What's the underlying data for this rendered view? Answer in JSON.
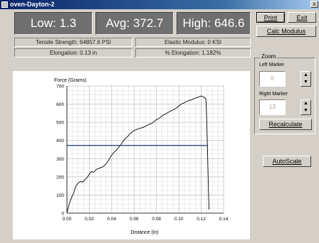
{
  "window": {
    "title": "oven-Dayton-2",
    "close_glyph": "x"
  },
  "stats": {
    "low_label": "Low:",
    "low_value": "1.3",
    "avg_label": "Avg:",
    "avg_value": "372.7",
    "high_label": "High:",
    "high_value": "646.6"
  },
  "info": {
    "tensile_strength": "Tensile Strength: 64857.6 PSI",
    "elastic_modulus": "Elastic Modulus: 0 KSI",
    "elongation": "Elongation: 0.13 in",
    "pct_elongation": "% Elongation: 1.182%"
  },
  "buttons": {
    "print": "Print",
    "exit": "Exit",
    "calc_modulus": "Calc Modulus",
    "recalculate": "Recalculate",
    "autoscale": "AutoScale"
  },
  "zoom": {
    "group_label": "Zoom",
    "left_marker_label": "Left Marker",
    "left_marker_value": "0",
    "right_marker_label": "Right Marker",
    "right_marker_value": "13",
    "spin_up": "▲",
    "spin_down": "▼"
  },
  "colors": {
    "stat_box_bg": "#6f6f6f",
    "title_bar": "#0a246a",
    "data_line": "#000000",
    "avg_line": "#2a4e7a"
  },
  "chart_data": {
    "type": "line",
    "ylabel": "Force (Grams)",
    "xlabel": "Distance (in)",
    "xlim": [
      0,
      0.14
    ],
    "ylim": [
      0,
      700
    ],
    "xticks": [
      "0.00",
      "0.02",
      "0.04",
      "0.06",
      "0.08",
      "0.10",
      "0.12",
      "0.14"
    ],
    "yticks": [
      "0",
      "100",
      "200",
      "300",
      "400",
      "500",
      "600",
      "700"
    ],
    "grid": true,
    "series": [
      {
        "x": [
          0,
          0.002,
          0.004,
          0.006,
          0.008,
          0.01,
          0.012,
          0.014,
          0.016,
          0.018,
          0.02,
          0.022,
          0.024,
          0.026,
          0.028,
          0.03,
          0.032,
          0.034,
          0.036,
          0.038,
          0.04,
          0.042,
          0.044,
          0.046,
          0.048,
          0.05,
          0.052,
          0.054,
          0.056,
          0.058,
          0.06,
          0.062,
          0.064,
          0.066,
          0.068,
          0.07,
          0.072,
          0.074,
          0.076,
          0.078,
          0.08,
          0.082,
          0.084,
          0.086,
          0.088,
          0.09,
          0.092,
          0.094,
          0.096,
          0.098,
          0.1,
          0.102,
          0.104,
          0.106,
          0.108,
          0.11,
          0.112,
          0.114,
          0.116,
          0.118,
          0.12,
          0.122,
          0.124,
          0.1245,
          0.125,
          0.1255,
          0.126,
          0.1265,
          0.127
        ],
        "y": [
          2,
          50,
          85,
          110,
          150,
          165,
          175,
          170,
          185,
          195,
          215,
          230,
          225,
          240,
          245,
          250,
          255,
          265,
          280,
          300,
          320,
          335,
          345,
          360,
          375,
          395,
          410,
          420,
          435,
          445,
          455,
          460,
          465,
          468,
          472,
          478,
          485,
          490,
          495,
          505,
          515,
          520,
          530,
          540,
          545,
          552,
          560,
          565,
          572,
          580,
          590,
          600,
          605,
          612,
          618,
          622,
          625,
          632,
          635,
          640,
          645,
          640,
          630,
          600,
          500,
          380,
          250,
          120,
          20
        ]
      },
      {
        "name": "Avg",
        "x": [
          0,
          0.126
        ],
        "y": [
          372.7,
          372.7
        ]
      }
    ]
  }
}
